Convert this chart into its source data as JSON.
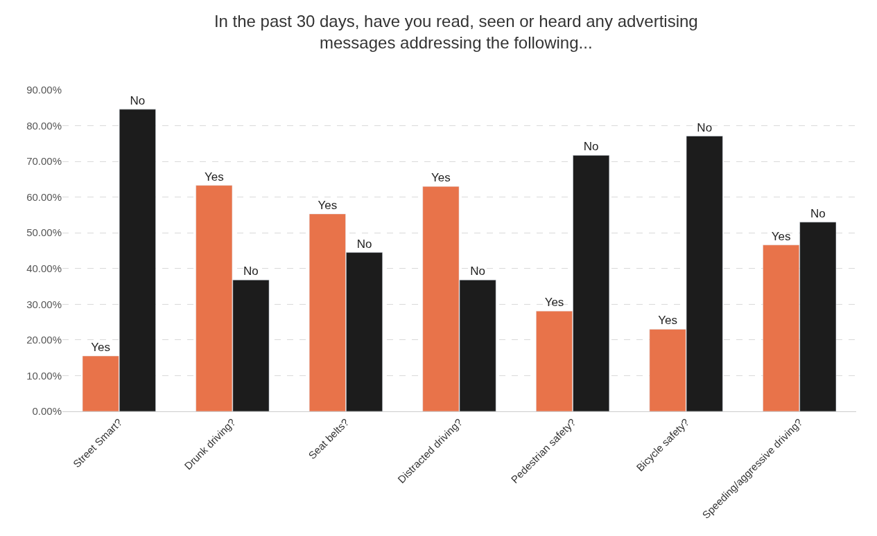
{
  "chart_data": {
    "type": "bar",
    "title": "In the past 30 days, have you read, seen or heard any advertising messages addressing the following...",
    "categories": [
      "Street Smart?",
      "Drunk driving?",
      "Seat belts?",
      "Distracted driving?",
      "Pedestrian safety?",
      "Bicycle safety?",
      "Speeding/aggressive driving?"
    ],
    "series": [
      {
        "name": "Yes",
        "color": "#e8734a",
        "values": [
          15.5,
          63.3,
          55.3,
          63.0,
          28.1,
          23.0,
          46.6
        ]
      },
      {
        "name": "No",
        "color": "#1c1c1c",
        "values": [
          84.6,
          36.8,
          44.5,
          36.8,
          71.7,
          77.1,
          53.0
        ]
      }
    ],
    "ylim": [
      0,
      90
    ],
    "yticks": [
      {
        "value": 0,
        "label": "0.00%"
      },
      {
        "value": 10,
        "label": "10.00%"
      },
      {
        "value": 20,
        "label": "20.00%"
      },
      {
        "value": 30,
        "label": "30.00%"
      },
      {
        "value": 40,
        "label": "40.00%"
      },
      {
        "value": 50,
        "label": "50.00%"
      },
      {
        "value": 60,
        "label": "60.00%"
      },
      {
        "value": 70,
        "label": "70.00%"
      },
      {
        "value": 80,
        "label": "80.00%"
      },
      {
        "value": 90,
        "label": "90.00%"
      }
    ],
    "grid": "y",
    "legend": false
  }
}
